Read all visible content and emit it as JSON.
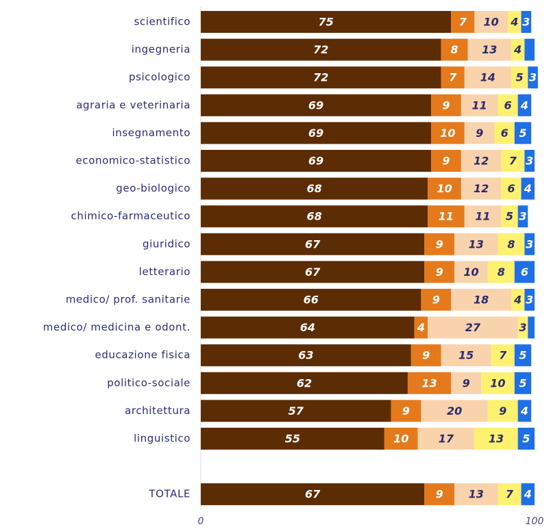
{
  "chart_data": {
    "type": "stacked-barh",
    "categories": [
      "scientifico",
      "ingegneria",
      "psicologico",
      "agraria e veterinaria",
      "insegnamento",
      "economico-statistico",
      "geo-biologico",
      "chimico-farmaceutico",
      "giuridico",
      "letterario",
      "medico/ prof. sanitarie",
      "medico/ medicina e odont.",
      "educazione fisica",
      "politico-sociale",
      "architettura",
      "linguistico",
      null,
      "TOTALE"
    ],
    "series": [
      {
        "color": "#5c2c04",
        "values": [
          75,
          72,
          72,
          69,
          69,
          69,
          68,
          68,
          67,
          67,
          66,
          64,
          63,
          62,
          57,
          55,
          null,
          67
        ]
      },
      {
        "color": "#e47a1c",
        "values": [
          7,
          8,
          7,
          9,
          10,
          9,
          10,
          11,
          9,
          9,
          9,
          4,
          9,
          13,
          9,
          10,
          null,
          9
        ]
      },
      {
        "color": "#f9d3ac",
        "values": [
          10,
          13,
          14,
          11,
          9,
          12,
          12,
          11,
          13,
          10,
          18,
          27,
          15,
          9,
          20,
          17,
          null,
          13
        ]
      },
      {
        "color": "#fff170",
        "values": [
          4,
          4,
          5,
          6,
          6,
          7,
          6,
          5,
          8,
          8,
          4,
          3,
          7,
          10,
          9,
          13,
          null,
          7
        ]
      },
      {
        "color": "#1f6fe6",
        "values": [
          3,
          3,
          3,
          4,
          5,
          3,
          4,
          3,
          3,
          6,
          3,
          2,
          5,
          5,
          4,
          5,
          null,
          4
        ],
        "value_labels": [
          "3",
          null,
          "3",
          "4",
          "5",
          "3",
          "4",
          "3",
          "3",
          "6",
          "3",
          null,
          "5",
          "5",
          "4",
          "5",
          null,
          "4"
        ]
      }
    ],
    "xlim": [
      0,
      100
    ],
    "xticks": [
      0,
      100
    ]
  }
}
